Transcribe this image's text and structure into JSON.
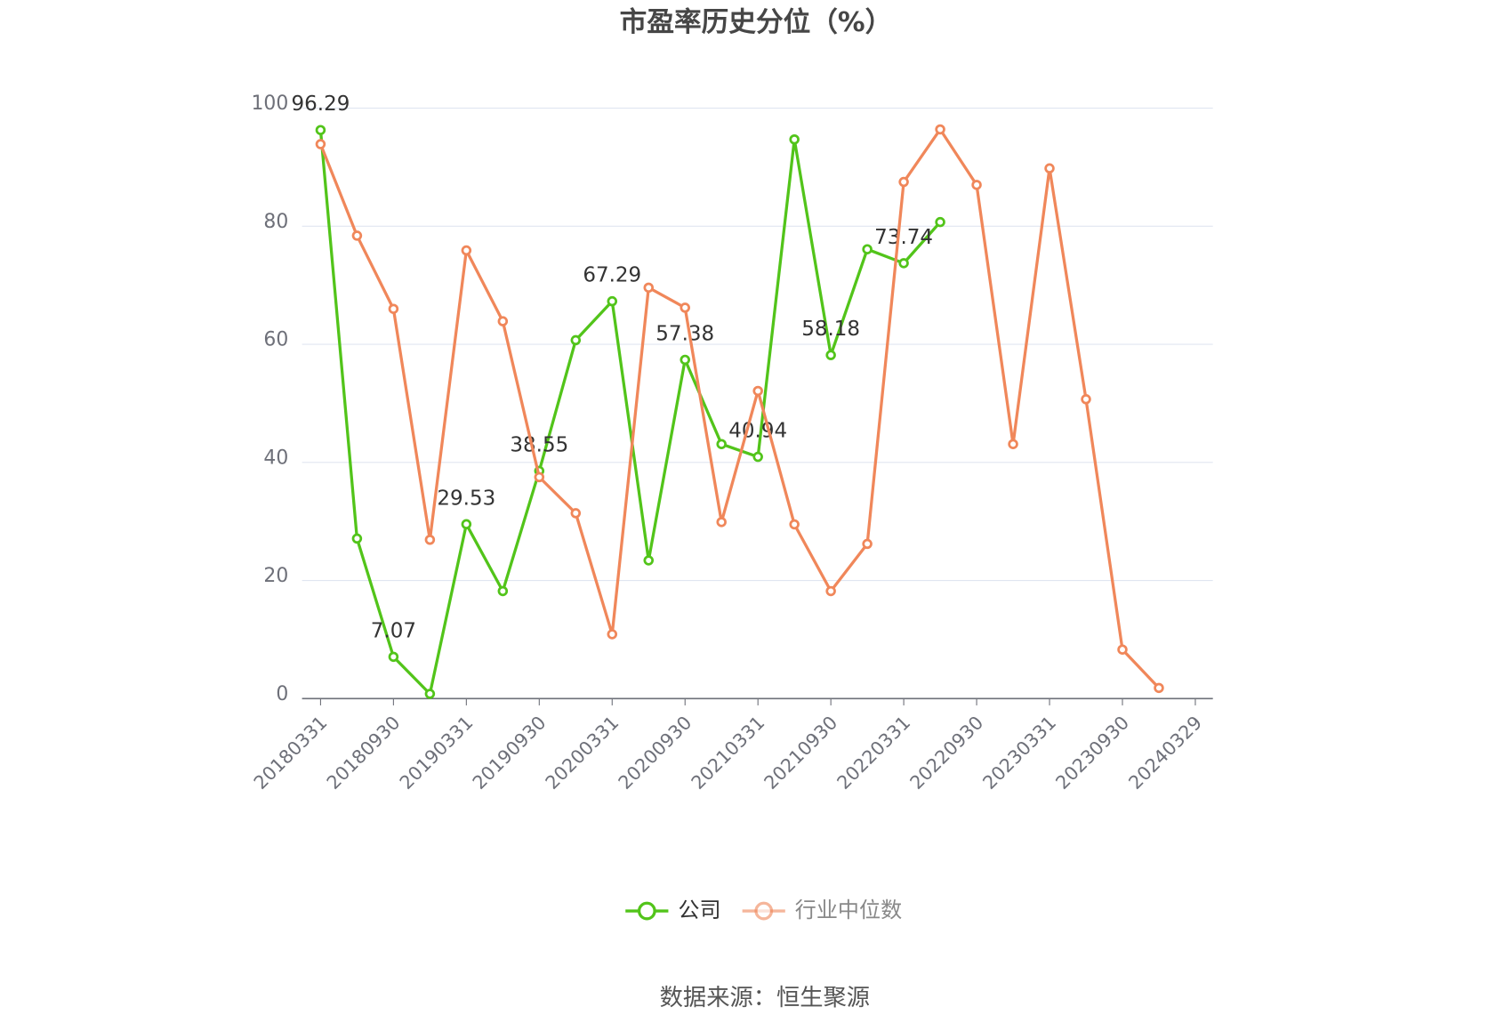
{
  "chart_data": {
    "type": "line",
    "title": "市盈率历史分位（%）",
    "source": "数据来源：恒生聚源",
    "categories": [
      "20180331",
      null,
      "20180930",
      null,
      "20190331",
      null,
      "20190930",
      null,
      "20200331",
      null,
      "20200930",
      null,
      "20210331",
      null,
      "20210930",
      null,
      "20220331",
      null,
      "20220930",
      null,
      "20230331",
      null,
      "20230930",
      null,
      "20240329"
    ],
    "series": [
      {
        "name": "公司",
        "color": "#52c41a",
        "values": [
          96.29,
          27.1,
          7.07,
          0.8,
          29.53,
          18.2,
          38.55,
          60.7,
          67.29,
          23.4,
          57.38,
          43.1,
          40.94,
          94.7,
          58.18,
          76.1,
          73.74,
          80.7,
          null,
          null,
          null,
          null,
          null,
          null,
          null
        ],
        "data_label_interval": 2
      },
      {
        "name": "行业中位数",
        "color": "#f0875a",
        "values": [
          93.9,
          78.4,
          66.0,
          26.9,
          75.9,
          63.9,
          37.5,
          31.4,
          10.9,
          69.6,
          66.2,
          29.9,
          52.1,
          29.5,
          18.2,
          26.2,
          87.5,
          96.4,
          87.0,
          43.1,
          89.8,
          50.7,
          8.3,
          1.8,
          null
        ]
      }
    ],
    "ylim": [
      0,
      100
    ],
    "yticks": [
      0,
      20,
      40,
      60,
      80,
      100
    ],
    "grid": true,
    "legend": "bottom"
  }
}
